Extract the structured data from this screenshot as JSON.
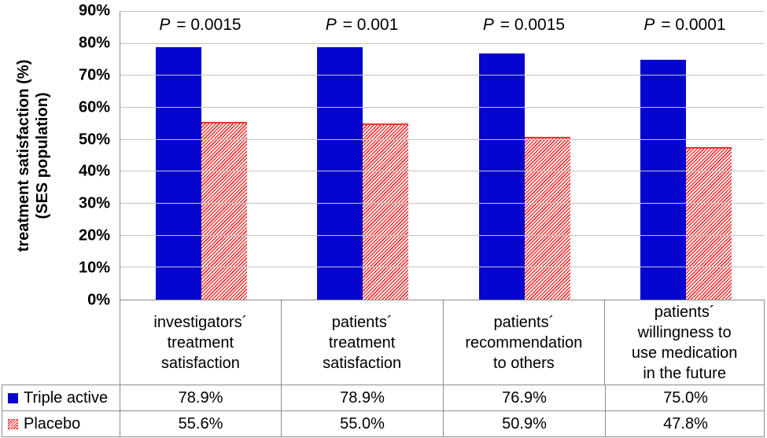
{
  "colors": {
    "triple_active": "#0505CF",
    "placebo": "#EE3333",
    "gridline": "#C3C3C3",
    "border": "#8C8C8C",
    "text": "#000000",
    "background": "#FFFFFF"
  },
  "chart_data": {
    "type": "bar",
    "title": "",
    "ylabel_line1": "treatment satisfaction (%)",
    "ylabel_line2": "(SES population)",
    "ymin": 0,
    "ymax": 90,
    "ytick_step": 10,
    "ytick_labels": [
      "0%",
      "10%",
      "20%",
      "30%",
      "40%",
      "50%",
      "60%",
      "70%",
      "80%",
      "90%"
    ],
    "grid": true,
    "legend_position": "table-left-column",
    "value_suffix": "%",
    "p_symbol": "P",
    "p_values": [
      "0.0015",
      "0.001",
      "0.0015",
      "0.0001"
    ],
    "categories": [
      "investigators´\ntreatment\nsatisfaction",
      "patients´\ntreatment\nsatisfaction",
      "patients´\nrecommendation\nto others",
      "patients´\nwillingness to\nuse medication\nin the future"
    ],
    "series": [
      {
        "name": "Triple active",
        "pattern": "solid",
        "color": "#0505CF",
        "values": [
          78.9,
          78.9,
          76.9,
          75.0
        ]
      },
      {
        "name": "Placebo",
        "pattern": "diagonal-hatch",
        "color": "#EE3333",
        "values": [
          55.6,
          55.0,
          50.9,
          47.8
        ]
      }
    ]
  }
}
